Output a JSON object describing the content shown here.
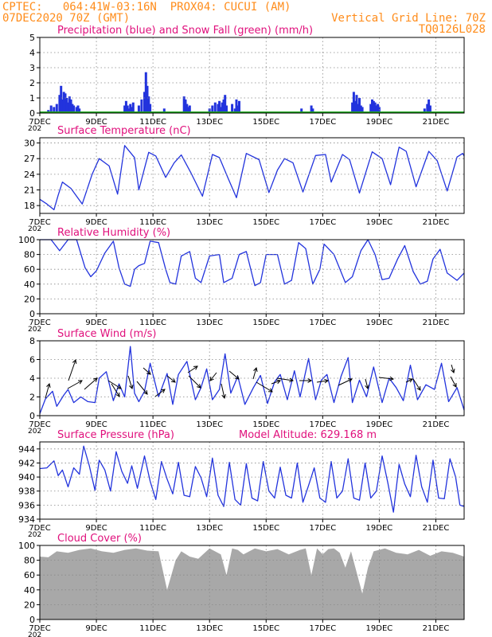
{
  "header": {
    "line1": "CPTEC:   064:41W-03:16N  PROX04: CUCUI (AM)",
    "line2_left": "07DEC2020 70Z (GMT)",
    "line2_right": "Vertical Grid Line: 70Z",
    "code": "TQ0126L028"
  },
  "colors": {
    "header": "#ff8c1a",
    "title": "#e0107c",
    "line": "#2233dd",
    "precip": "#2233dd",
    "snow": "#22aa22",
    "cloud": "#a8a8a8",
    "grid": "#888888"
  },
  "x_ticks": [
    "7DEC",
    "9DEC",
    "11DEC",
    "13DEC",
    "15DEC",
    "17DEC",
    "19DEC",
    "21DEC"
  ],
  "x_tick_sublabel": "202",
  "chart_data": [
    {
      "id": "precip",
      "type": "bar",
      "title": "Precipitation (blue) and Snow Fall (green) (mm/h)",
      "ylim": [
        0,
        5
      ],
      "yticks": [
        0,
        1,
        2,
        3,
        4,
        5
      ],
      "x_start_day": 0,
      "x_end_day": 15,
      "x_ticks": [
        0,
        2,
        4,
        6,
        8,
        10,
        12,
        14
      ],
      "series": [
        {
          "name": "Precipitation",
          "color": "#2233dd",
          "x": [
            0.3,
            0.4,
            0.5,
            0.6,
            0.7,
            0.75,
            0.8,
            0.85,
            0.9,
            0.95,
            1.0,
            1.05,
            1.1,
            1.15,
            1.2,
            1.3,
            1.35,
            1.4,
            2.6,
            3.0,
            3.05,
            3.1,
            3.15,
            3.2,
            3.25,
            3.3,
            3.5,
            3.6,
            3.7,
            3.75,
            3.8,
            3.85,
            3.9,
            4.4,
            5.1,
            5.15,
            5.2,
            5.25,
            5.3,
            6.0,
            6.1,
            6.2,
            6.3,
            6.35,
            6.4,
            6.45,
            6.5,
            6.55,
            6.6,
            6.8,
            6.9,
            6.95,
            7.0,
            7.05,
            8.2,
            8.6,
            9.2,
            9.25,
            9.5,
            9.6,
            9.65,
            10.5,
            11.05,
            11.1,
            11.15,
            11.2,
            11.25,
            11.3,
            11.35,
            11.4,
            11.7,
            11.75,
            11.8,
            11.85,
            11.9,
            11.95,
            12.0,
            12.5,
            13.6,
            13.7,
            13.75,
            13.8
          ],
          "values": [
            0.2,
            0.5,
            0.4,
            0.6,
            1.2,
            1.8,
            0.9,
            1.4,
            1.3,
            1.0,
            0.7,
            1.1,
            0.9,
            0.6,
            0.5,
            0.4,
            0.5,
            0.3,
            0.1,
            0.5,
            0.8,
            0.5,
            0.3,
            0.6,
            0.4,
            0.7,
            0.5,
            0.9,
            1.4,
            2.7,
            1.8,
            1.1,
            0.6,
            0.3,
            1.1,
            0.9,
            0.6,
            0.4,
            0.5,
            0.3,
            0.5,
            0.7,
            0.6,
            0.8,
            0.4,
            0.7,
            0.9,
            1.2,
            0.5,
            0.6,
            0.3,
            0.9,
            0.5,
            0.8,
            0.1,
            0.1,
            0.1,
            0.3,
            0.1,
            0.5,
            0.3,
            0.1,
            0.7,
            1.4,
            0.8,
            1.2,
            0.6,
            1.0,
            0.5,
            0.4,
            0.6,
            0.9,
            0.8,
            0.7,
            0.5,
            0.6,
            0.4,
            0.1,
            0.3,
            0.6,
            0.9,
            0.5
          ]
        },
        {
          "name": "Snow Fall",
          "color": "#22aa22",
          "x": [
            0,
            15
          ],
          "values": [
            0,
            0
          ]
        }
      ]
    },
    {
      "id": "temperature",
      "type": "line",
      "title": "Surface Temperature (nC)",
      "ylim": [
        16.5,
        31
      ],
      "yticks": [
        18,
        21,
        24,
        27,
        30
      ],
      "x_start_day": 0,
      "x_end_day": 15,
      "x_ticks": [
        0,
        2,
        4,
        6,
        8,
        10,
        12,
        14
      ],
      "series": [
        {
          "name": "Surface Temperature",
          "color": "#2233dd",
          "x": [
            0.0,
            0.25,
            0.5,
            0.65,
            0.8,
            1.1,
            1.5,
            1.85,
            2.1,
            2.45,
            2.75,
            3.0,
            3.35,
            3.5,
            3.85,
            4.1,
            4.45,
            4.75,
            5.0,
            5.35,
            5.75,
            6.1,
            6.35,
            6.65,
            6.95,
            7.3,
            7.75,
            8.1,
            8.4,
            8.65,
            8.95,
            9.3,
            9.75,
            10.1,
            10.3,
            10.7,
            10.95,
            11.3,
            11.75,
            12.1,
            12.4,
            12.7,
            12.95,
            13.3,
            13.75,
            14.05,
            14.4,
            14.75,
            14.95,
            15.0
          ],
          "values": [
            19.2,
            18.3,
            17.2,
            20.0,
            22.5,
            21.3,
            18.3,
            24.0,
            27.0,
            25.6,
            20.2,
            29.5,
            27.2,
            21.0,
            28.2,
            27.5,
            23.4,
            26.2,
            27.7,
            24.2,
            19.8,
            27.8,
            27.2,
            23.3,
            19.5,
            28.0,
            26.8,
            20.5,
            24.8,
            27.0,
            26.2,
            20.6,
            27.6,
            27.8,
            22.5,
            27.8,
            26.8,
            20.4,
            28.3,
            27.0,
            22.0,
            29.2,
            28.4,
            21.6,
            28.4,
            26.6,
            20.8,
            27.3,
            28.0,
            27.5
          ]
        }
      ]
    },
    {
      "id": "humidity",
      "type": "line",
      "title": "Relative Humidity (%)",
      "ylim": [
        0,
        100
      ],
      "yticks": [
        0,
        20,
        40,
        60,
        80,
        100
      ],
      "x_start_day": 0,
      "x_end_day": 15,
      "x_ticks": [
        0,
        2,
        4,
        6,
        8,
        10,
        12,
        14
      ],
      "series": [
        {
          "name": "Relative Humidity",
          "color": "#2233dd",
          "x": [
            0.0,
            0.4,
            0.7,
            1.0,
            1.3,
            1.6,
            1.8,
            2.0,
            2.3,
            2.6,
            2.8,
            3.0,
            3.2,
            3.35,
            3.5,
            3.7,
            3.9,
            4.2,
            4.45,
            4.6,
            4.8,
            5.0,
            5.3,
            5.5,
            5.7,
            6.0,
            6.35,
            6.5,
            6.8,
            7.05,
            7.3,
            7.6,
            7.8,
            8.0,
            8.4,
            8.65,
            8.9,
            9.15,
            9.4,
            9.65,
            9.9,
            10.05,
            10.4,
            10.8,
            11.05,
            11.35,
            11.6,
            11.85,
            12.1,
            12.35,
            12.65,
            12.9,
            13.2,
            13.45,
            13.7,
            13.9,
            14.15,
            14.4,
            14.75,
            15.0
          ],
          "values": [
            100,
            100,
            85,
            100,
            100,
            62,
            50,
            58,
            82,
            98,
            62,
            40,
            37,
            60,
            65,
            68,
            98,
            96,
            60,
            42,
            40,
            78,
            84,
            48,
            42,
            78,
            80,
            42,
            48,
            80,
            84,
            38,
            42,
            80,
            80,
            40,
            45,
            96,
            88,
            40,
            60,
            94,
            80,
            42,
            50,
            85,
            100,
            80,
            46,
            48,
            74,
            92,
            57,
            40,
            44,
            74,
            87,
            55,
            45,
            55
          ]
        }
      ]
    },
    {
      "id": "wind",
      "type": "line",
      "title": "Surface Wind (m/s)",
      "ylim": [
        0,
        8
      ],
      "yticks": [
        0,
        2,
        4,
        6,
        8
      ],
      "x_start_day": 0,
      "x_end_day": 15,
      "x_ticks": [
        0,
        2,
        4,
        6,
        8,
        10,
        12,
        14
      ],
      "series": [
        {
          "name": "Surface Wind",
          "color": "#2233dd",
          "x": [
            0.0,
            0.2,
            0.45,
            0.6,
            0.85,
            1.0,
            1.2,
            1.45,
            1.7,
            1.95,
            2.1,
            2.35,
            2.6,
            2.8,
            3.0,
            3.2,
            3.35,
            3.5,
            3.7,
            3.9,
            4.2,
            4.5,
            4.7,
            4.9,
            5.2,
            5.5,
            5.7,
            5.9,
            6.1,
            6.35,
            6.55,
            6.75,
            7.0,
            7.25,
            7.55,
            7.8,
            8.05,
            8.3,
            8.5,
            8.75,
            9.0,
            9.2,
            9.5,
            9.75,
            9.95,
            10.15,
            10.4,
            10.65,
            10.9,
            11.05,
            11.3,
            11.55,
            11.8,
            12.1,
            12.35,
            12.6,
            12.85,
            13.1,
            13.35,
            13.65,
            13.95,
            14.2,
            14.45,
            14.75,
            15.0
          ],
          "values": [
            0.2,
            1.8,
            2.6,
            1.0,
            2.2,
            2.8,
            1.4,
            2.0,
            1.5,
            1.4,
            4.0,
            4.7,
            1.6,
            3.4,
            2.0,
            7.4,
            2.4,
            1.5,
            2.6,
            5.6,
            2.0,
            4.5,
            1.2,
            4.4,
            5.8,
            1.7,
            3.0,
            5.0,
            1.7,
            2.8,
            6.6,
            2.4,
            4.2,
            1.2,
            3.0,
            4.3,
            1.3,
            3.6,
            4.4,
            1.7,
            4.8,
            2.0,
            6.1,
            1.7,
            3.8,
            4.4,
            1.4,
            4.2,
            6.2,
            1.4,
            3.8,
            2.0,
            5.2,
            1.4,
            4.0,
            3.0,
            1.6,
            5.4,
            1.7,
            3.3,
            2.8,
            5.6,
            1.5,
            3.0,
            0.6
          ]
        }
      ]
    },
    {
      "id": "pressure",
      "type": "line",
      "title": "Surface Pressure (hPa)",
      "annotation": "Model Altitude: 629.168  m",
      "ylim": [
        934,
        945
      ],
      "yticks": [
        934,
        936,
        938,
        940,
        942,
        944
      ],
      "x_start_day": 0,
      "x_end_day": 15,
      "x_ticks": [
        0,
        2,
        4,
        6,
        8,
        10,
        12,
        14
      ],
      "series": [
        {
          "name": "Surface Pressure",
          "color": "#2233dd",
          "x": [
            0.0,
            0.25,
            0.5,
            0.65,
            0.8,
            1.0,
            1.2,
            1.4,
            1.55,
            1.75,
            1.95,
            2.1,
            2.3,
            2.5,
            2.7,
            2.9,
            3.1,
            3.25,
            3.45,
            3.7,
            3.9,
            4.1,
            4.3,
            4.5,
            4.7,
            4.9,
            5.1,
            5.3,
            5.5,
            5.7,
            5.9,
            6.1,
            6.3,
            6.5,
            6.7,
            6.9,
            7.1,
            7.3,
            7.5,
            7.7,
            7.9,
            8.1,
            8.3,
            8.5,
            8.7,
            8.9,
            9.1,
            9.3,
            9.5,
            9.7,
            9.9,
            10.1,
            10.3,
            10.5,
            10.7,
            10.9,
            11.1,
            11.3,
            11.5,
            11.7,
            11.9,
            12.1,
            12.3,
            12.5,
            12.7,
            12.9,
            13.1,
            13.3,
            13.5,
            13.7,
            13.9,
            14.1,
            14.3,
            14.5,
            14.7,
            14.85,
            15.0
          ],
          "values": [
            941.2,
            941.3,
            942.3,
            940.2,
            941.0,
            938.6,
            941.3,
            940.4,
            944.4,
            941.6,
            938.1,
            942.4,
            941.0,
            938.0,
            943.6,
            940.8,
            939.1,
            941.6,
            938.4,
            943.0,
            939.4,
            936.8,
            942.2,
            939.7,
            937.6,
            942.1,
            937.4,
            937.2,
            941.5,
            939.9,
            937.2,
            942.7,
            937.4,
            935.8,
            942.1,
            936.8,
            936.0,
            941.9,
            937.0,
            936.6,
            942.2,
            938.0,
            937.0,
            941.4,
            937.4,
            937.0,
            942.0,
            936.4,
            938.8,
            941.3,
            937.0,
            936.4,
            942.2,
            937.0,
            938.0,
            942.6,
            937.0,
            936.7,
            942.0,
            937.0,
            938.0,
            943.0,
            939.2,
            935.0,
            941.8,
            939.0,
            937.2,
            943.1,
            938.6,
            936.4,
            942.4,
            937.0,
            936.9,
            942.6,
            940.0,
            936.0,
            935.8
          ]
        }
      ]
    },
    {
      "id": "cloud",
      "type": "area",
      "title": "Cloud Cover (%)",
      "ylim": [
        0,
        100
      ],
      "yticks": [
        0,
        20,
        40,
        60,
        80,
        100
      ],
      "x_start_day": 0,
      "x_end_day": 15,
      "x_ticks": [
        0,
        2,
        4,
        6,
        8,
        10,
        12,
        14
      ],
      "series": [
        {
          "name": "Cloud Cover",
          "color": "#a8a8a8",
          "x": [
            0.0,
            0.3,
            0.6,
            1.0,
            1.4,
            1.8,
            2.2,
            2.6,
            3.0,
            3.4,
            3.8,
            4.2,
            4.5,
            4.8,
            5.0,
            5.3,
            5.6,
            6.0,
            6.4,
            6.6,
            6.8,
            7.0,
            7.2,
            7.6,
            8.0,
            8.4,
            8.8,
            9.2,
            9.4,
            9.6,
            9.8,
            10.0,
            10.2,
            10.4,
            10.6,
            10.8,
            11.0,
            11.4,
            11.6,
            11.8,
            12.2,
            12.6,
            13.0,
            13.4,
            13.8,
            14.2,
            14.6,
            15.0
          ],
          "values": [
            85,
            84,
            92,
            90,
            94,
            96,
            92,
            90,
            94,
            96,
            93,
            92,
            40,
            80,
            92,
            85,
            82,
            96,
            88,
            60,
            96,
            94,
            88,
            96,
            92,
            95,
            88,
            94,
            96,
            60,
            96,
            88,
            95,
            96,
            90,
            70,
            92,
            35,
            70,
            92,
            96,
            90,
            88,
            94,
            86,
            92,
            90,
            85
          ]
        }
      ]
    }
  ]
}
